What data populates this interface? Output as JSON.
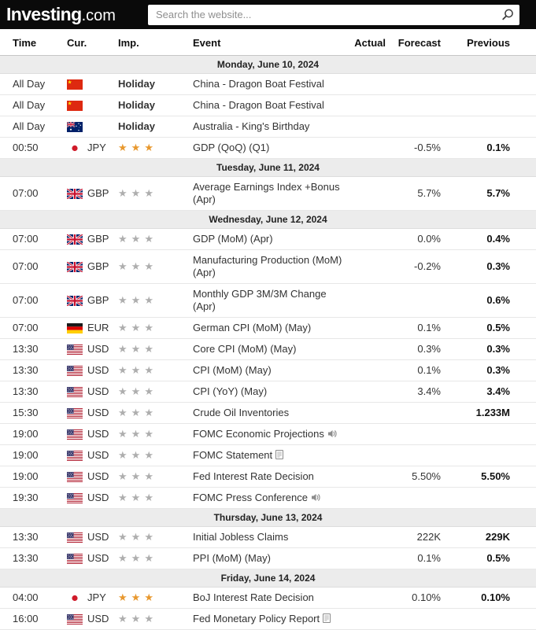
{
  "header": {
    "logo_main": "Investing",
    "logo_suffix": ".com",
    "search_placeholder": "Search the website...",
    "search_icon": "magnifier-icon"
  },
  "table": {
    "columns": {
      "time": "Time",
      "cur": "Cur.",
      "imp": "Imp.",
      "event": "Event",
      "actual": "Actual",
      "forecast": "Forecast",
      "previous": "Previous"
    },
    "star_colors": {
      "gold": "#e8982e",
      "gray": "#aeaeae"
    },
    "groups": [
      {
        "date": "Monday, June 10, 2024",
        "rows": [
          {
            "time": "All Day",
            "flag": "cn",
            "currency": "",
            "imp": {
              "type": "holiday",
              "label": "Holiday"
            },
            "event": "China - Dragon Boat Festival",
            "icon": null,
            "actual": "",
            "forecast": "",
            "previous": ""
          },
          {
            "time": "All Day",
            "flag": "cn",
            "currency": "",
            "imp": {
              "type": "holiday",
              "label": "Holiday"
            },
            "event": "China - Dragon Boat Festival",
            "icon": null,
            "actual": "",
            "forecast": "",
            "previous": ""
          },
          {
            "time": "All Day",
            "flag": "au",
            "currency": "",
            "imp": {
              "type": "holiday",
              "label": "Holiday"
            },
            "event": "Australia - King's Birthday",
            "icon": null,
            "actual": "",
            "forecast": "",
            "previous": ""
          },
          {
            "time": "00:50",
            "flag": "jp",
            "currency": "JPY",
            "imp": {
              "type": "stars",
              "count": 3,
              "color": "gold"
            },
            "event": "GDP (QoQ) (Q1)",
            "icon": null,
            "actual": "",
            "forecast": "-0.5%",
            "previous": "0.1%"
          }
        ]
      },
      {
        "date": "Tuesday, June 11, 2024",
        "rows": [
          {
            "time": "07:00",
            "flag": "gb",
            "currency": "GBP",
            "imp": {
              "type": "stars",
              "count": 3,
              "color": "gray"
            },
            "event": "Average Earnings Index +Bonus (Apr)",
            "icon": null,
            "actual": "",
            "forecast": "5.7%",
            "previous": "5.7%"
          }
        ]
      },
      {
        "date": "Wednesday, June 12, 2024",
        "rows": [
          {
            "time": "07:00",
            "flag": "gb",
            "currency": "GBP",
            "imp": {
              "type": "stars",
              "count": 3,
              "color": "gray"
            },
            "event": "GDP (MoM) (Apr)",
            "icon": null,
            "actual": "",
            "forecast": "0.0%",
            "previous": "0.4%"
          },
          {
            "time": "07:00",
            "flag": "gb",
            "currency": "GBP",
            "imp": {
              "type": "stars",
              "count": 3,
              "color": "gray"
            },
            "event": "Manufacturing Production (MoM) (Apr)",
            "icon": null,
            "actual": "",
            "forecast": "-0.2%",
            "previous": "0.3%"
          },
          {
            "time": "07:00",
            "flag": "gb",
            "currency": "GBP",
            "imp": {
              "type": "stars",
              "count": 3,
              "color": "gray"
            },
            "event": "Monthly GDP 3M/3M Change (Apr)",
            "icon": null,
            "actual": "",
            "forecast": "",
            "previous": "0.6%"
          },
          {
            "time": "07:00",
            "flag": "de",
            "currency": "EUR",
            "imp": {
              "type": "stars",
              "count": 3,
              "color": "gray"
            },
            "event": "German CPI (MoM) (May)",
            "icon": null,
            "actual": "",
            "forecast": "0.1%",
            "previous": "0.5%"
          },
          {
            "time": "13:30",
            "flag": "us",
            "currency": "USD",
            "imp": {
              "type": "stars",
              "count": 3,
              "color": "gray"
            },
            "event": "Core CPI (MoM) (May)",
            "icon": null,
            "actual": "",
            "forecast": "0.3%",
            "previous": "0.3%"
          },
          {
            "time": "13:30",
            "flag": "us",
            "currency": "USD",
            "imp": {
              "type": "stars",
              "count": 3,
              "color": "gray"
            },
            "event": "CPI (MoM) (May)",
            "icon": null,
            "actual": "",
            "forecast": "0.1%",
            "previous": "0.3%"
          },
          {
            "time": "13:30",
            "flag": "us",
            "currency": "USD",
            "imp": {
              "type": "stars",
              "count": 3,
              "color": "gray"
            },
            "event": "CPI (YoY) (May)",
            "icon": null,
            "actual": "",
            "forecast": "3.4%",
            "previous": "3.4%"
          },
          {
            "time": "15:30",
            "flag": "us",
            "currency": "USD",
            "imp": {
              "type": "stars",
              "count": 3,
              "color": "gray"
            },
            "event": "Crude Oil Inventories",
            "icon": null,
            "actual": "",
            "forecast": "",
            "previous": "1.233M"
          },
          {
            "time": "19:00",
            "flag": "us",
            "currency": "USD",
            "imp": {
              "type": "stars",
              "count": 3,
              "color": "gray"
            },
            "event": "FOMC Economic Projections",
            "icon": "speaker",
            "actual": "",
            "forecast": "",
            "previous": ""
          },
          {
            "time": "19:00",
            "flag": "us",
            "currency": "USD",
            "imp": {
              "type": "stars",
              "count": 3,
              "color": "gray"
            },
            "event": "FOMC Statement",
            "icon": "document",
            "actual": "",
            "forecast": "",
            "previous": ""
          },
          {
            "time": "19:00",
            "flag": "us",
            "currency": "USD",
            "imp": {
              "type": "stars",
              "count": 3,
              "color": "gray"
            },
            "event": "Fed Interest Rate Decision",
            "icon": null,
            "actual": "",
            "forecast": "5.50%",
            "previous": "5.50%"
          },
          {
            "time": "19:30",
            "flag": "us",
            "currency": "USD",
            "imp": {
              "type": "stars",
              "count": 3,
              "color": "gray"
            },
            "event": "FOMC Press Conference",
            "icon": "speaker",
            "actual": "",
            "forecast": "",
            "previous": ""
          }
        ]
      },
      {
        "date": "Thursday, June 13, 2024",
        "rows": [
          {
            "time": "13:30",
            "flag": "us",
            "currency": "USD",
            "imp": {
              "type": "stars",
              "count": 3,
              "color": "gray"
            },
            "event": "Initial Jobless Claims",
            "icon": null,
            "actual": "",
            "forecast": "222K",
            "previous": "229K"
          },
          {
            "time": "13:30",
            "flag": "us",
            "currency": "USD",
            "imp": {
              "type": "stars",
              "count": 3,
              "color": "gray"
            },
            "event": "PPI (MoM) (May)",
            "icon": null,
            "actual": "",
            "forecast": "0.1%",
            "previous": "0.5%"
          }
        ]
      },
      {
        "date": "Friday, June 14, 2024",
        "rows": [
          {
            "time": "04:00",
            "flag": "jp",
            "currency": "JPY",
            "imp": {
              "type": "stars",
              "count": 3,
              "color": "gold"
            },
            "event": "BoJ Interest Rate Decision",
            "icon": null,
            "actual": "",
            "forecast": "0.10%",
            "previous": "0.10%"
          },
          {
            "time": "16:00",
            "flag": "us",
            "currency": "USD",
            "imp": {
              "type": "stars",
              "count": 3,
              "color": "gray"
            },
            "event": "Fed Monetary Policy Report",
            "icon": "document",
            "actual": "",
            "forecast": "",
            "previous": ""
          }
        ]
      }
    ]
  }
}
